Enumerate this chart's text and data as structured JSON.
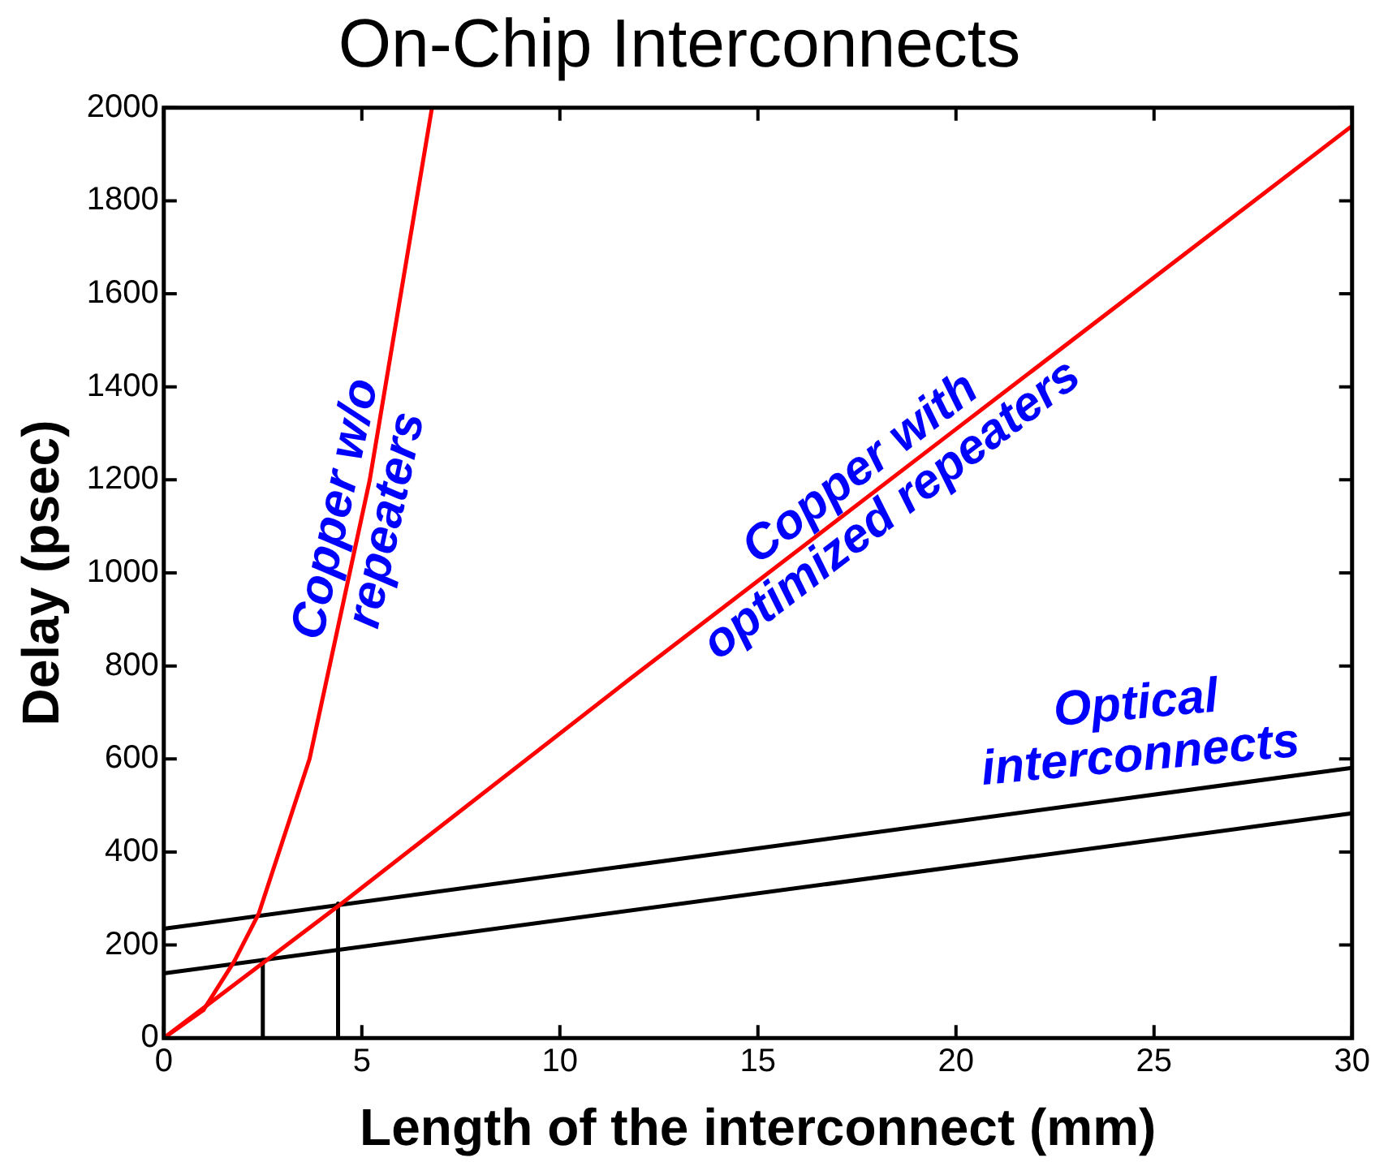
{
  "chart_data": {
    "type": "line",
    "title": "On-Chip Interconnects",
    "xlabel": "Length of the interconnect (mm)",
    "ylabel": "Delay (psec)",
    "xlim": [
      0,
      30
    ],
    "xticks": [
      0,
      5,
      10,
      15,
      20,
      25,
      30
    ],
    "ylim": [
      0,
      2000
    ],
    "yticks": [
      0,
      200,
      400,
      600,
      800,
      1000,
      1200,
      1400,
      1600,
      1800,
      2000
    ],
    "annotations": [
      "Optical interconnects"
    ],
    "grid": false,
    "legend": false,
    "marker": "none",
    "line_style": "solid",
    "series": [
      {
        "name": "Copper w/o repeaters",
        "color": "#ff0000",
        "x": [
          0,
          1,
          1.78,
          2.4,
          3.68,
          5.2,
          6.77
        ],
        "values": [
          0,
          60,
          165,
          268,
          600,
          1200,
          2000
        ]
      },
      {
        "name": "Copper with optimized repeaters",
        "color": "#ff0000",
        "x": [
          0,
          4.5,
          11.8,
          20,
          30
        ],
        "values": [
          0,
          290,
          774,
          1309,
          1961
        ]
      },
      {
        "color": "#000000",
        "x": [
          0,
          30
        ],
        "values": [
          235,
          581
        ]
      },
      {
        "color": "#000000",
        "x": [
          0,
          30
        ],
        "values": [
          139,
          483
        ]
      },
      {
        "color": "#000000",
        "x": [
          2.5,
          2.5
        ],
        "values": [
          0,
          168
        ]
      },
      {
        "color": "#000000",
        "x": [
          4.4,
          4.4
        ],
        "values": [
          0,
          289
        ]
      }
    ]
  }
}
